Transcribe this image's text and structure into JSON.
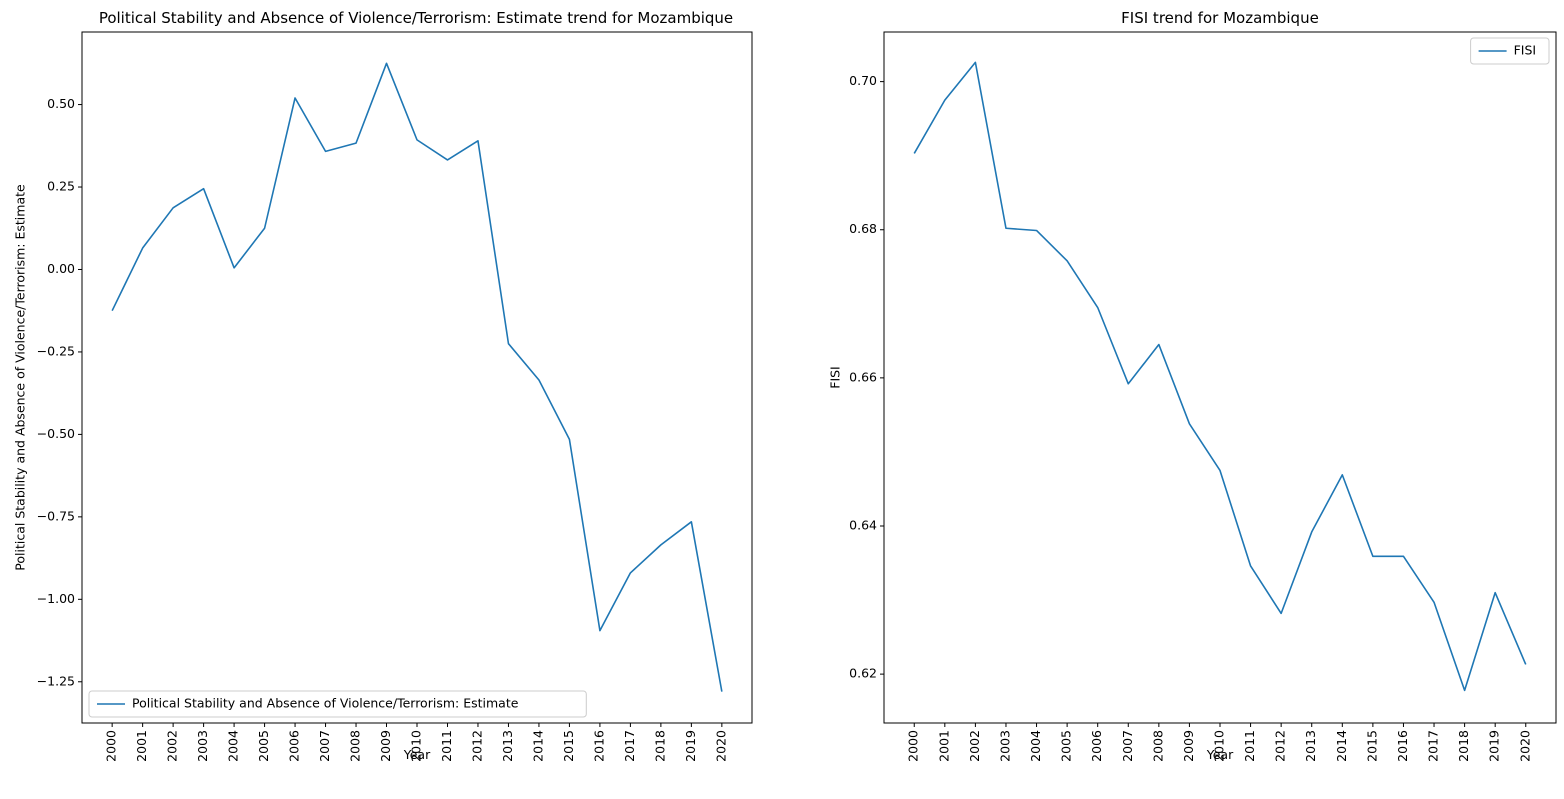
{
  "chart_data": [
    {
      "type": "line",
      "title": "Political Stability and Absence of Violence/Terrorism: Estimate trend for Mozambique",
      "xlabel": "Year",
      "ylabel": "Political Stability and Absence of Violence/Terrorism: Estimate",
      "x": [
        "2000",
        "2001",
        "2002",
        "2003",
        "2004",
        "2005",
        "2006",
        "2007",
        "2008",
        "2009",
        "2010",
        "2011",
        "2012",
        "2013",
        "2014",
        "2015",
        "2016",
        "2017",
        "2018",
        "2019",
        "2020"
      ],
      "series": [
        {
          "name": "Political Stability and Absence of Violence/Terrorism: Estimate",
          "color": "#1f77b4",
          "values": [
            -0.125,
            0.065,
            0.187,
            0.245,
            0.005,
            0.125,
            0.52,
            0.358,
            0.383,
            0.625,
            0.393,
            0.332,
            0.39,
            -0.225,
            -0.335,
            -0.515,
            -1.095,
            -0.92,
            -0.835,
            -0.765,
            -1.28
          ]
        }
      ],
      "ylim": [
        -1.375,
        0.72
      ],
      "yticks": [
        -1.25,
        -1.0,
        -0.75,
        -0.5,
        -0.25,
        0.0,
        0.25,
        0.5
      ],
      "ytick_labels": [
        "−1.25",
        "−1.00",
        "−0.75",
        "−0.50",
        "−0.25",
        "0.00",
        "0.25",
        "0.50"
      ],
      "grid": false,
      "legend_position": "lower-left"
    },
    {
      "type": "line",
      "title": "FISI trend for Mozambique",
      "xlabel": "Year",
      "ylabel": "FISI",
      "x": [
        "2000",
        "2001",
        "2002",
        "2003",
        "2004",
        "2005",
        "2006",
        "2007",
        "2008",
        "2009",
        "2010",
        "2011",
        "2012",
        "2013",
        "2014",
        "2015",
        "2016",
        "2017",
        "2018",
        "2019",
        "2020"
      ],
      "series": [
        {
          "name": "FISI",
          "color": "#1f77b4",
          "values": [
            0.6903,
            0.6975,
            0.7026,
            0.6802,
            0.6799,
            0.6758,
            0.6695,
            0.6592,
            0.6645,
            0.6538,
            0.6475,
            0.6346,
            0.6282,
            0.6392,
            0.6469,
            0.6359,
            0.6359,
            0.6297,
            0.6178,
            0.631,
            0.6213
          ]
        }
      ],
      "ylim": [
        0.6134,
        0.7067
      ],
      "yticks": [
        0.62,
        0.64,
        0.66,
        0.68,
        0.7
      ],
      "ytick_labels": [
        "0.62",
        "0.64",
        "0.66",
        "0.68",
        "0.70"
      ],
      "grid": false,
      "legend_position": "upper-right"
    }
  ]
}
